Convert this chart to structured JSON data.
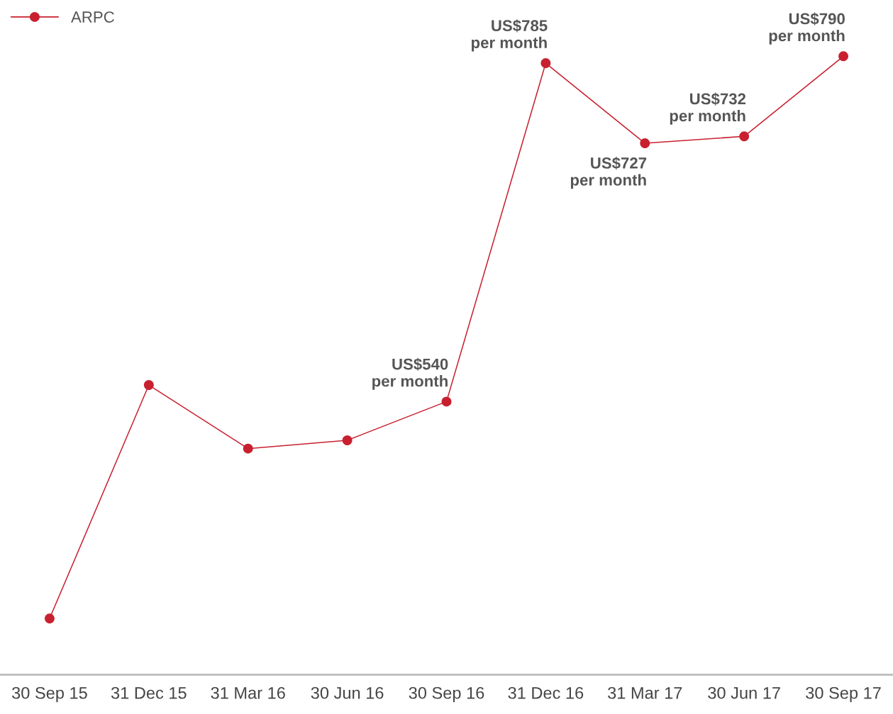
{
  "chart_data": {
    "type": "line",
    "categories": [
      "30 Sep 15",
      "31 Dec 15",
      "31 Mar 16",
      "30 Jun 16",
      "30 Sep 16",
      "31 Dec 16",
      "31 Mar 17",
      "30 Jun 17",
      "30 Sep 17"
    ],
    "series": [
      {
        "name": "ARPC",
        "color": "#c8202f",
        "values": [
          383,
          552,
          506,
          512,
          540,
          785,
          727,
          732,
          790
        ],
        "value_labels": [
          null,
          null,
          null,
          null,
          "US$540\nper month",
          "US$785\nper month",
          "US$727\nper month",
          "US$732\nper month",
          "US$790\nper month"
        ]
      }
    ],
    "tick_labels": "x",
    "grid": false,
    "legend": "top left",
    "marker": "circle",
    "line_style": "solid"
  }
}
